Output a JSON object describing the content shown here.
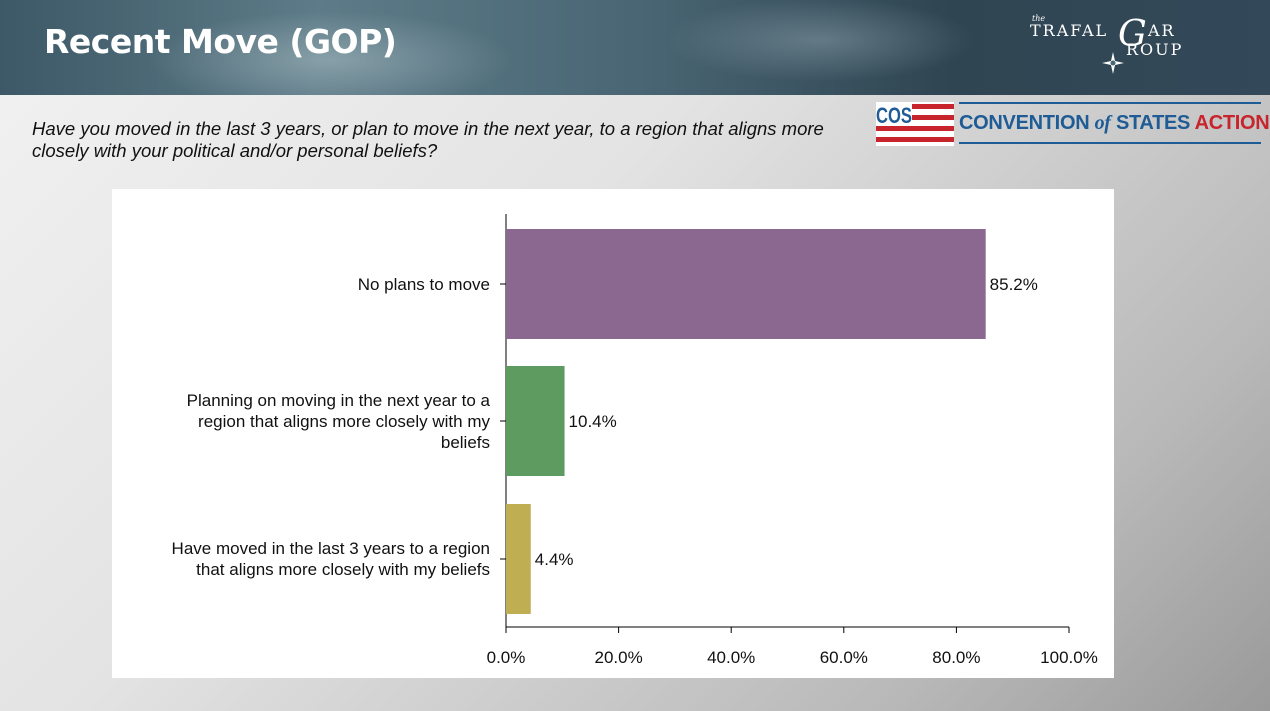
{
  "header": {
    "title": "Recent Move (GOP)",
    "trafalgar_logo": {
      "the": "the",
      "line1": "TRAFAL",
      "big_letter": "G",
      "line1_end": "AR",
      "line2": "ROUP"
    }
  },
  "question": "Have you moved in the last 3 years, or plan to move in the next year, to a region that aligns more closely with your political and/or personal beliefs?",
  "cos_logo": {
    "badge": "COS",
    "text_part1": "CONVENTION",
    "text_of": "of",
    "text_part2": "STATES",
    "text_action": "ACTION",
    "colors": {
      "blue": "#1f5b95",
      "red": "#c8242c"
    }
  },
  "chart_data": {
    "type": "bar",
    "orientation": "horizontal",
    "title": "",
    "xlabel": "",
    "ylabel": "",
    "categories": [
      "No plans to move",
      "Planning on moving in the next year to a region that aligns more closely with my beliefs",
      "Have moved in the last 3 years to a region that aligns more closely with my beliefs"
    ],
    "values": [
      85.2,
      10.4,
      4.4
    ],
    "value_labels": [
      "85.2%",
      "10.4%",
      "4.4%"
    ],
    "bar_colors": [
      "#8b6890",
      "#5e9b61",
      "#c0ae53"
    ],
    "xlim": [
      0,
      100
    ],
    "x_ticks": [
      0,
      20,
      40,
      60,
      80,
      100
    ],
    "x_tick_labels": [
      "0.0%",
      "20.0%",
      "40.0%",
      "60.0%",
      "80.0%",
      "100.0%"
    ],
    "grid": false,
    "legend": "none"
  }
}
